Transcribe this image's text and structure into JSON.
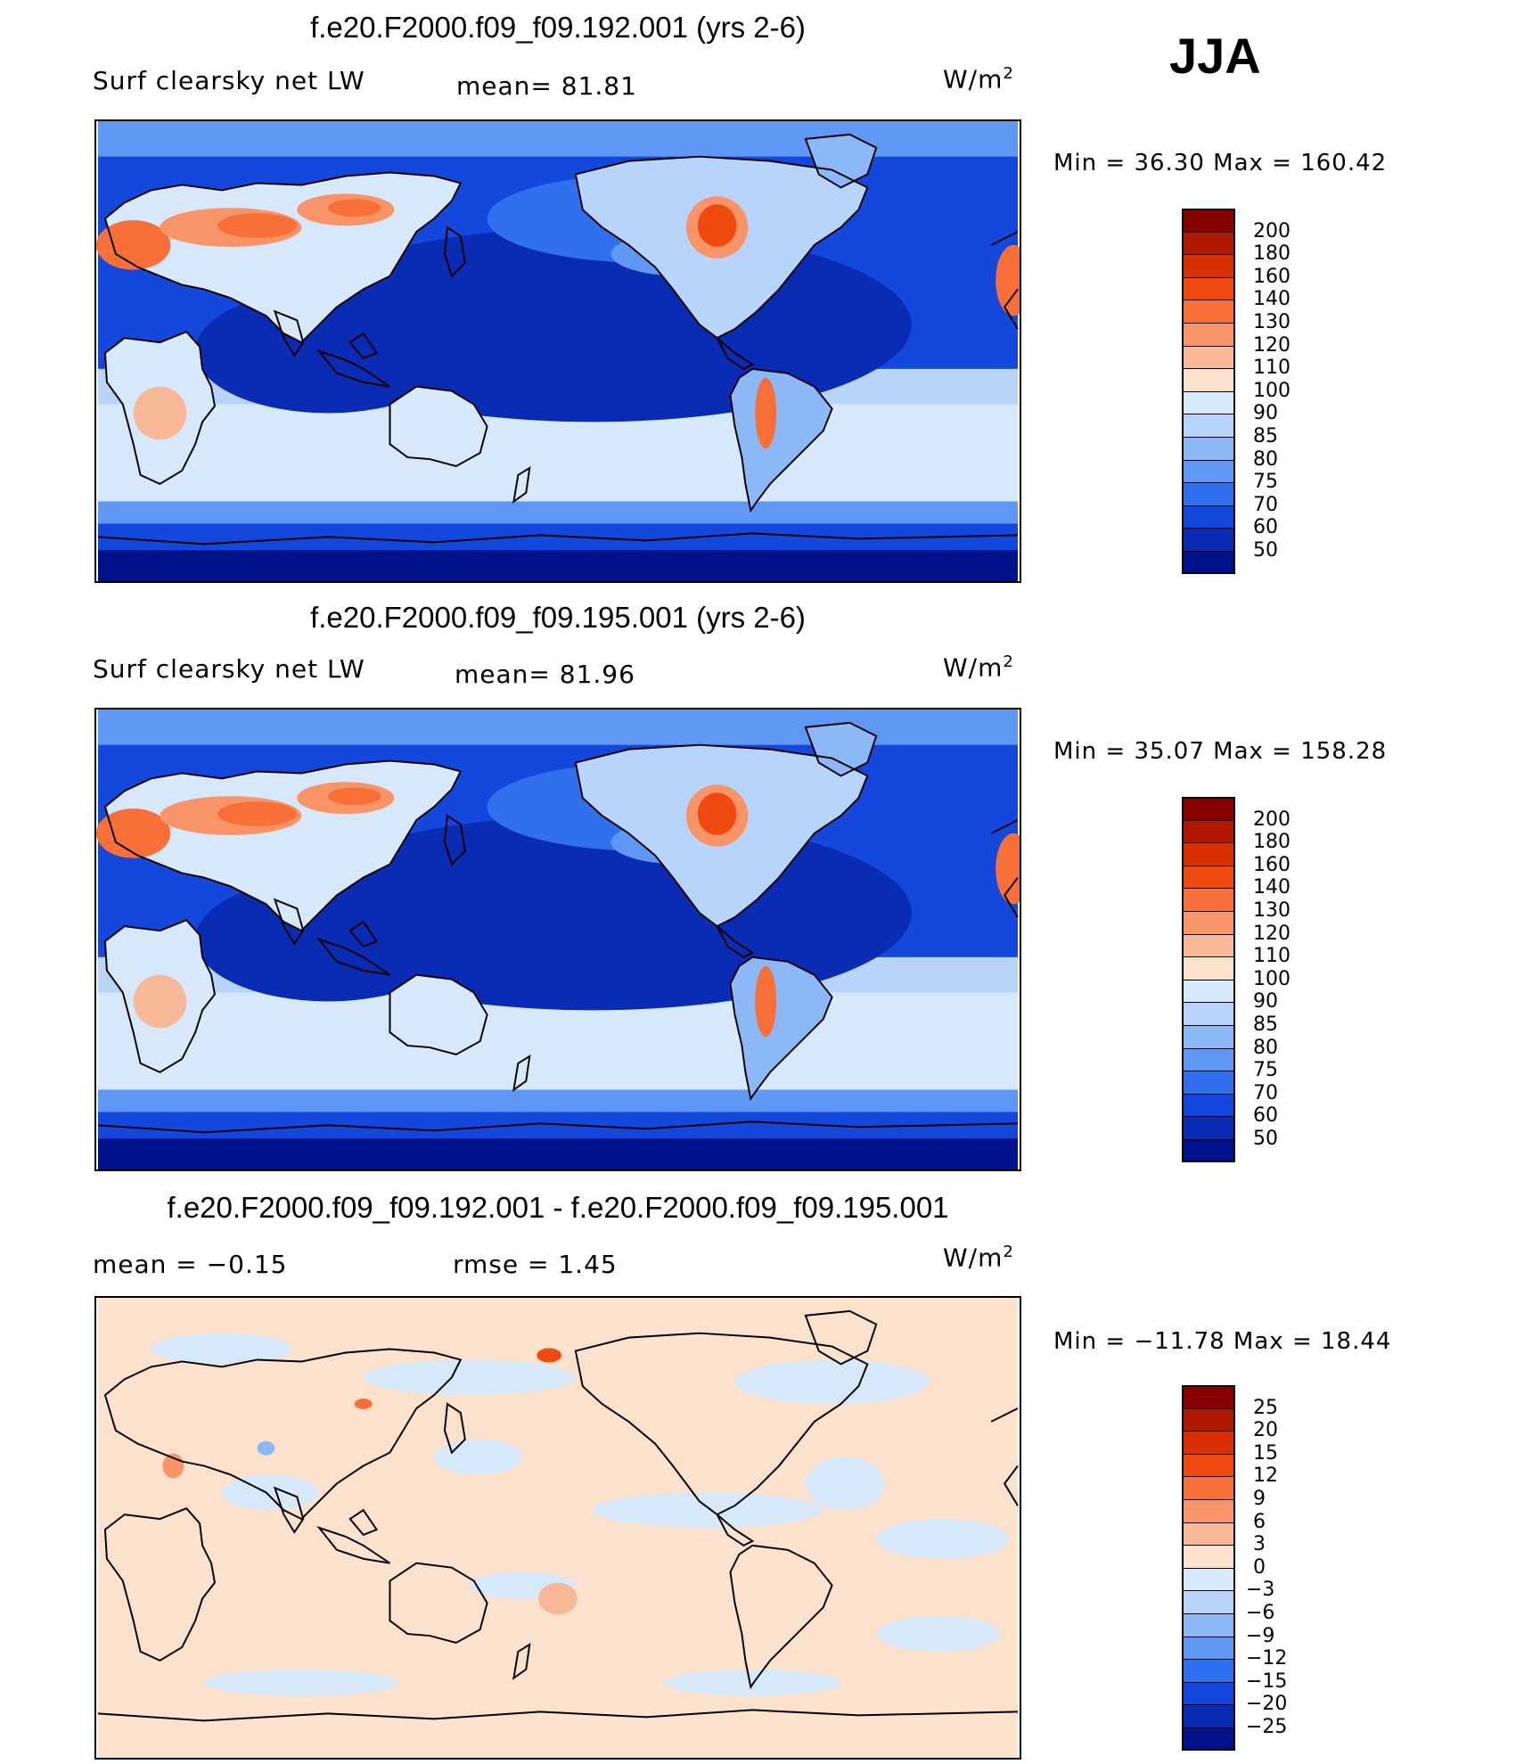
{
  "season": "JJA",
  "panels": [
    {
      "title": "f.e20.F2000.f09_f09.192.001 (yrs 2-6)",
      "variable": "Surf clearsky net LW",
      "stat1": "mean=   81.81",
      "stat2": "",
      "units": "W/m",
      "units_exp": "2",
      "minmax": "Min  =    36.30  Max  =  160.42",
      "colorbar": {
        "ticks": [
          "200",
          "180",
          "160",
          "140",
          "130",
          "120",
          "110",
          "100",
          "90",
          "85",
          "80",
          "75",
          "70",
          "60",
          "50"
        ],
        "colors": [
          "#8a0000",
          "#b01800",
          "#d83000",
          "#f04a10",
          "#f87038",
          "#f89468",
          "#f8b898",
          "#fce2cc",
          "#d6e8fa",
          "#b8d4fa",
          "#8cb8f8",
          "#5e98f4",
          "#3070ee",
          "#1448dc",
          "#0a2cb4",
          "#00128a"
        ]
      },
      "map_kind": "absolute"
    },
    {
      "title": "f.e20.F2000.f09_f09.195.001 (yrs 2-6)",
      "variable": "Surf clearsky net LW",
      "stat1": "mean=   81.96",
      "stat2": "",
      "units": "W/m",
      "units_exp": "2",
      "minmax": "Min  =    35.07  Max  =  158.28",
      "colorbar": {
        "ticks": [
          "200",
          "180",
          "160",
          "140",
          "130",
          "120",
          "110",
          "100",
          "90",
          "85",
          "80",
          "75",
          "70",
          "60",
          "50"
        ],
        "colors": [
          "#8a0000",
          "#b01800",
          "#d83000",
          "#f04a10",
          "#f87038",
          "#f89468",
          "#f8b898",
          "#fce2cc",
          "#d6e8fa",
          "#b8d4fa",
          "#8cb8f8",
          "#5e98f4",
          "#3070ee",
          "#1448dc",
          "#0a2cb4",
          "#00128a"
        ]
      },
      "map_kind": "absolute"
    },
    {
      "title": "f.e20.F2000.f09_f09.192.001 - f.e20.F2000.f09_f09.195.001",
      "variable": "mean  =    −0.15",
      "stat1": "rmse  =     1.45",
      "stat2": "",
      "units": "W/m",
      "units_exp": "2",
      "minmax": "Min  = −11.78  Max  =    18.44",
      "colorbar": {
        "ticks": [
          "25",
          "20",
          "15",
          "12",
          "9",
          "6",
          "3",
          "0",
          "−3",
          "−6",
          "−9",
          "−12",
          "−15",
          "−20",
          "−25"
        ],
        "colors": [
          "#8a0000",
          "#b01800",
          "#d83000",
          "#f04a10",
          "#f87038",
          "#f89468",
          "#f8b898",
          "#fce2cc",
          "#d6e8fa",
          "#b8d4fa",
          "#8cb8f8",
          "#5e98f4",
          "#3070ee",
          "#1448dc",
          "#0a2cb4",
          "#00128a"
        ]
      },
      "map_kind": "difference"
    }
  ]
}
